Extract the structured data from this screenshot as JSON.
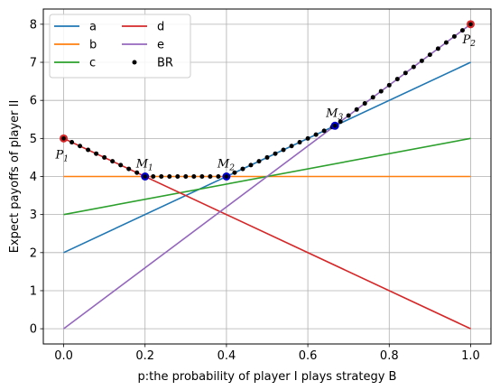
{
  "chart_data": {
    "type": "line",
    "xlabel": "p:the probability of player I plays strategy B",
    "ylabel": "Expect payoffs of player II",
    "xlim": [
      -0.05,
      1.05
    ],
    "ylim": [
      -0.4,
      8.4
    ],
    "x_ticks": [
      0.0,
      0.2,
      0.4,
      0.6,
      0.8,
      1.0
    ],
    "x_tick_labels": [
      "0.0",
      "0.2",
      "0.4",
      "0.6",
      "0.8",
      "1.0"
    ],
    "y_ticks": [
      0,
      1,
      2,
      3,
      4,
      5,
      6,
      7,
      8
    ],
    "y_tick_labels": [
      "0",
      "1",
      "2",
      "3",
      "4",
      "5",
      "6",
      "7",
      "8"
    ],
    "grid": true,
    "legend_position": "top-left",
    "series": [
      {
        "name": "a",
        "color": "#1f77b4",
        "x": [
          0,
          1
        ],
        "y": [
          2,
          7
        ]
      },
      {
        "name": "b",
        "color": "#ff7f0e",
        "x": [
          0,
          1
        ],
        "y": [
          4,
          4
        ]
      },
      {
        "name": "c",
        "color": "#2ca02c",
        "x": [
          0,
          1
        ],
        "y": [
          3,
          5
        ]
      },
      {
        "name": "d",
        "color": "#d62728",
        "x": [
          0,
          1
        ],
        "y": [
          5,
          0
        ]
      },
      {
        "name": "e",
        "color": "#9467bd",
        "x": [
          0,
          1
        ],
        "y": [
          0,
          8
        ]
      }
    ],
    "br_series": {
      "name": "BR",
      "color": "#000000",
      "start": 0,
      "end": 1,
      "count": 51
    },
    "annotations": [
      {
        "label": "P",
        "sub": "1",
        "x": 0.0,
        "y": 5.0,
        "marker_color": "#d62728"
      },
      {
        "label": "M",
        "sub": "1",
        "x": 0.2,
        "y": 4.0,
        "marker_color": "#0000cc"
      },
      {
        "label": "M",
        "sub": "2",
        "x": 0.4,
        "y": 4.0,
        "marker_color": "#0000cc"
      },
      {
        "label": "M",
        "sub": "3",
        "x": 0.6667,
        "y": 5.3333,
        "marker_color": "#0000cc"
      },
      {
        "label": "P",
        "sub": "2",
        "x": 1.0,
        "y": 8.0,
        "marker_color": "#d62728"
      }
    ]
  }
}
